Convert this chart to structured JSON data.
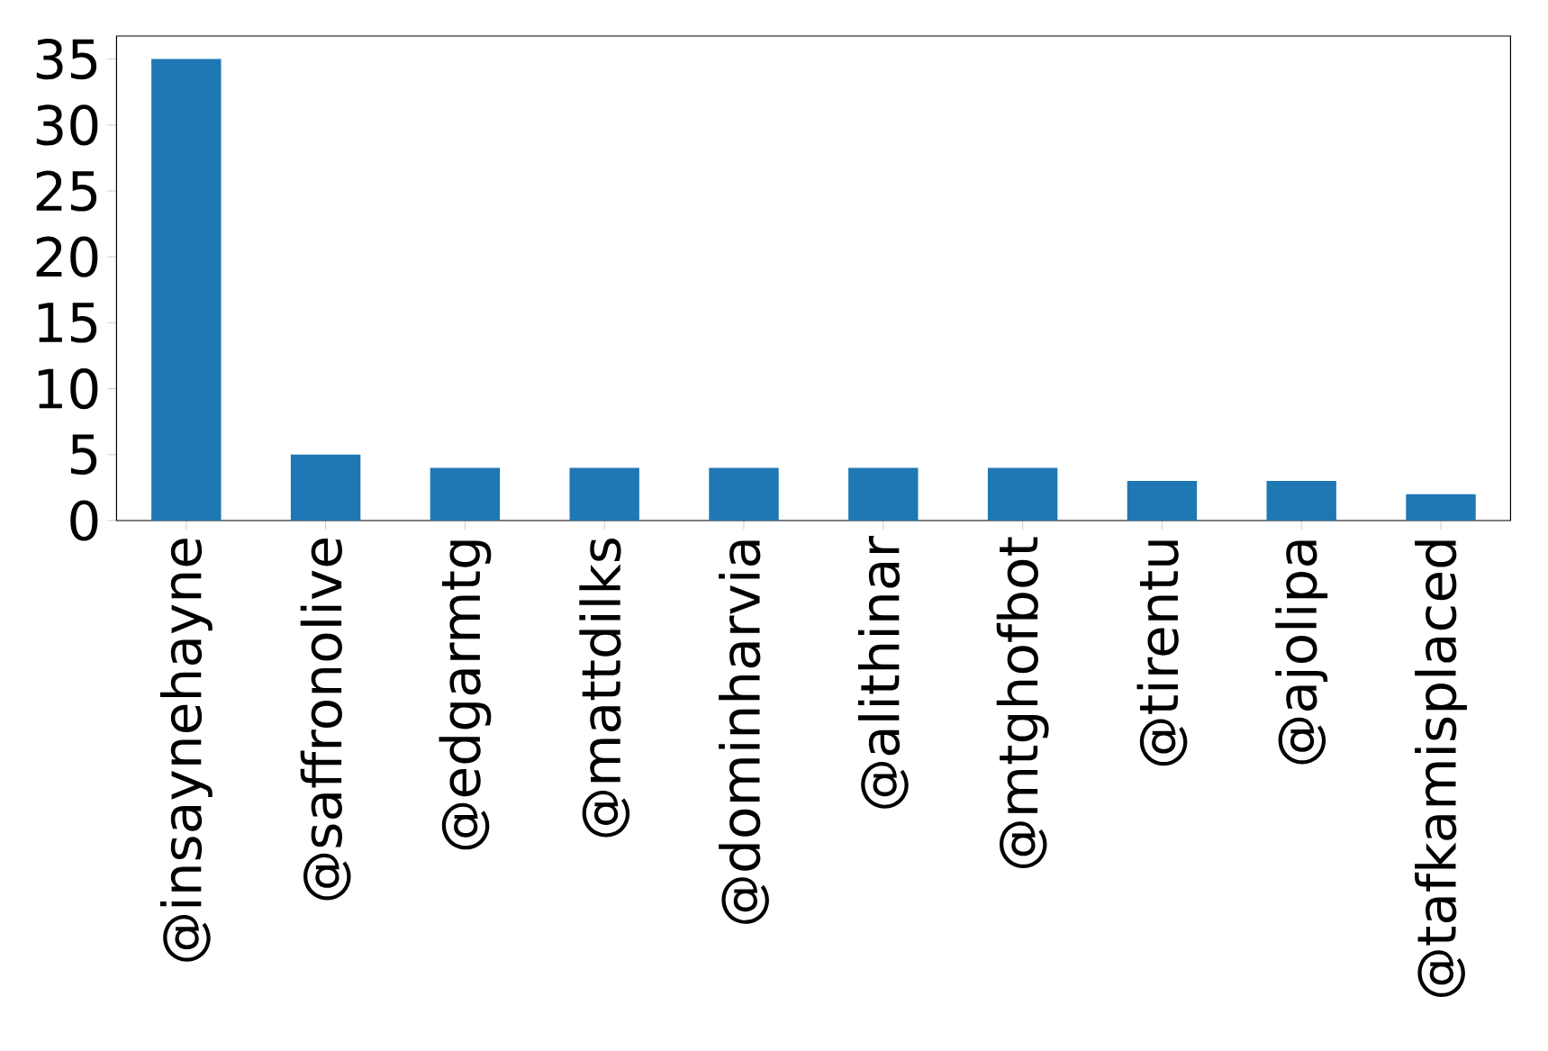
{
  "chart_data": {
    "type": "bar",
    "categories": [
      "@insaynehayne",
      "@saffronolive",
      "@edgarmtg",
      "@mattdilks",
      "@dominharvia",
      "@alithinar",
      "@mtghofbot",
      "@tirentu",
      "@ajolipa",
      "@tafkamisplaced"
    ],
    "values": [
      35,
      5,
      4,
      4,
      4,
      4,
      4,
      3,
      3,
      2
    ],
    "color": "#1f77b4",
    "ylim": [
      0,
      36.75
    ],
    "yticks": [
      0,
      5,
      10,
      15,
      20,
      25,
      30,
      35
    ]
  }
}
